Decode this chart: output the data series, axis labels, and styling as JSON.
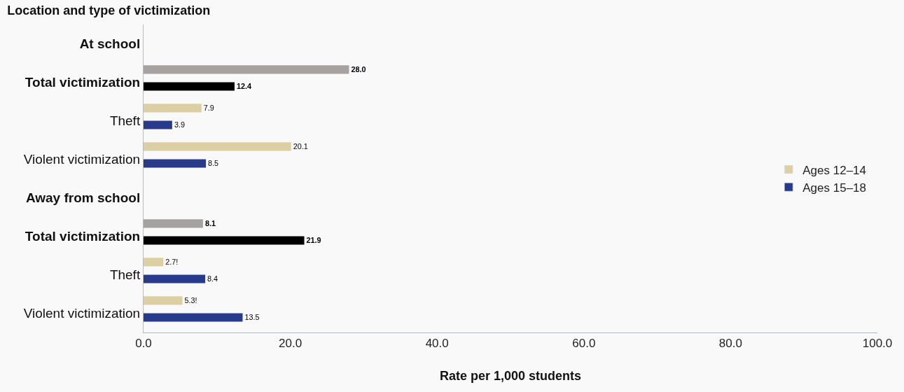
{
  "chart_data": {
    "type": "bar",
    "orientation": "horizontal",
    "title": "Location and type of victimization",
    "xlabel": "Rate per 1,000 students",
    "categories": [
      "At school",
      "Total victimization",
      "Theft",
      "Violent victimization",
      "Away from school",
      "Total victimization",
      "Theft",
      "Violent victimization"
    ],
    "series": [
      {
        "name": "Ages 12–14",
        "color": "#dccfa3",
        "values": [
          null,
          28.0,
          7.9,
          20.1,
          null,
          8.1,
          2.7,
          5.3
        ],
        "colors": [
          "#dccfa3",
          "#a6a2a0",
          "#dccfa3",
          "#dccfa3",
          "#dccfa3",
          "#a6a2a0",
          "#dccfa3",
          "#dccfa3"
        ],
        "value_labels": [
          null,
          "28.0",
          "7.9",
          "20.1",
          null,
          "8.1",
          "2.7!",
          "5.3!"
        ]
      },
      {
        "name": "Ages 15–18",
        "color": "#283a8c",
        "values": [
          null,
          12.4,
          3.9,
          8.5,
          null,
          21.9,
          8.4,
          13.5
        ],
        "colors": [
          "#283a8c",
          "#000000",
          "#283a8c",
          "#283a8c",
          "#283a8c",
          "#000000",
          "#283a8c",
          "#283a8c"
        ],
        "value_labels": [
          null,
          "12.4",
          "3.9",
          "8.5",
          null,
          "21.9",
          "8.4",
          "13.5"
        ]
      }
    ],
    "xlim": [
      0,
      100
    ],
    "xticks": [
      {
        "value": 0,
        "label": "0.0"
      },
      {
        "value": 20,
        "label": "20.0"
      },
      {
        "value": 40,
        "label": "40.0"
      },
      {
        "value": 60,
        "label": "60.0"
      },
      {
        "value": 80,
        "label": "80.0"
      },
      {
        "value": 100,
        "label": "100.0"
      }
    ],
    "grid": false,
    "legend": "right"
  }
}
